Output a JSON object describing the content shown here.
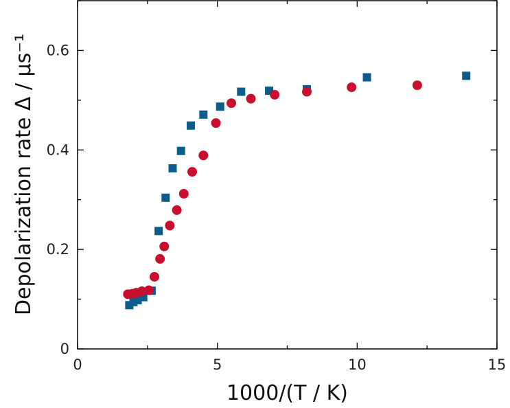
{
  "chart_data": {
    "type": "scatter",
    "title": "",
    "xlabel": "1000/(T / K)",
    "ylabel": "Depolarization rate Δ / μs⁻¹",
    "xlim": [
      0,
      15
    ],
    "ylim": [
      0,
      0.7
    ],
    "x_ticks": [
      0,
      5,
      10,
      15
    ],
    "y_ticks": [
      0,
      0.2,
      0.4,
      0.6
    ],
    "x_tick_labels": [
      "0",
      "5",
      "10",
      "15"
    ],
    "y_tick_labels": [
      "0",
      "0.2",
      "0.4",
      "0.6"
    ],
    "grid": false,
    "legend": "none",
    "series": [
      {
        "marker": "square",
        "color": "#0d5d8c",
        "x": [
          1.85,
          2.0,
          2.15,
          2.35,
          2.65,
          2.9,
          3.15,
          3.4,
          3.7,
          4.05,
          4.5,
          5.1,
          5.85,
          6.85,
          8.2,
          10.35,
          13.9
        ],
        "y": [
          0.088,
          0.094,
          0.098,
          0.104,
          0.117,
          0.237,
          0.304,
          0.363,
          0.398,
          0.449,
          0.471,
          0.487,
          0.517,
          0.519,
          0.522,
          0.546,
          0.549
        ]
      },
      {
        "marker": "circle",
        "color": "#c8102e",
        "x": [
          1.8,
          1.95,
          2.1,
          2.3,
          2.55,
          2.75,
          2.95,
          3.1,
          3.3,
          3.55,
          3.8,
          4.1,
          4.5,
          4.95,
          5.5,
          6.2,
          7.05,
          8.2,
          9.8,
          12.15
        ],
        "y": [
          0.11,
          0.111,
          0.113,
          0.116,
          0.118,
          0.145,
          0.181,
          0.206,
          0.248,
          0.279,
          0.312,
          0.356,
          0.389,
          0.454,
          0.494,
          0.503,
          0.511,
          0.517,
          0.526,
          0.53
        ]
      }
    ]
  }
}
